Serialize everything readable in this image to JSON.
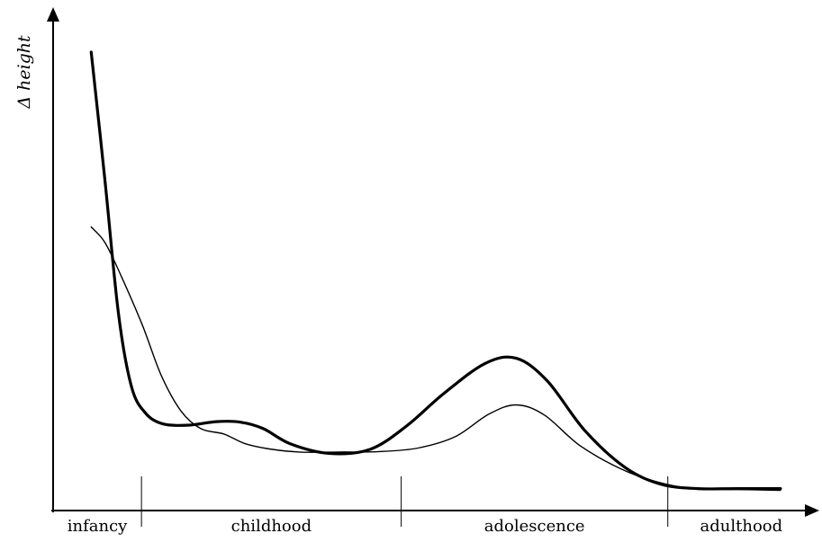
{
  "chart_data": {
    "type": "line",
    "title": "",
    "xlabel": "",
    "ylabel": "Δ height",
    "grid": false,
    "legend": "none",
    "xlim": [
      0,
      100
    ],
    "ylim": [
      0,
      100
    ],
    "stages": [
      {
        "label": "infancy",
        "start": 0,
        "end": 11.6
      },
      {
        "label": "childhood",
        "start": 11.6,
        "end": 45.7
      },
      {
        "label": "adolescence",
        "start": 45.7,
        "end": 80.7
      },
      {
        "label": "adulthood",
        "start": 80.7,
        "end": 100
      }
    ],
    "series": [
      {
        "style": "thick",
        "points": [
          [
            5,
            100
          ],
          [
            6.8,
            71
          ],
          [
            8.6,
            40.3
          ],
          [
            10.3,
            24
          ],
          [
            12.1,
            18.1
          ],
          [
            14.4,
            15.6
          ],
          [
            17.8,
            15.3
          ],
          [
            21.4,
            16.1
          ],
          [
            24.5,
            16
          ],
          [
            27.6,
            14.5
          ],
          [
            31.1,
            11.1
          ],
          [
            36.2,
            8.9
          ],
          [
            41.6,
            9.8
          ],
          [
            46.4,
            15.1
          ],
          [
            51.3,
            22.5
          ],
          [
            56.7,
            29.3
          ],
          [
            60.8,
            30.5
          ],
          [
            64.9,
            25.3
          ],
          [
            69.8,
            14.1
          ],
          [
            75.1,
            5.7
          ],
          [
            79.8,
            1.9
          ],
          [
            84.6,
            0.9
          ],
          [
            89.7,
            0.9
          ],
          [
            95.5,
            0.9
          ]
        ]
      },
      {
        "style": "thin",
        "points": [
          [
            5,
            60.3
          ],
          [
            6.8,
            56.8
          ],
          [
            8.9,
            49.3
          ],
          [
            11.7,
            38.1
          ],
          [
            14.2,
            26.6
          ],
          [
            16.8,
            18.5
          ],
          [
            19.4,
            14.5
          ],
          [
            22.4,
            13.3
          ],
          [
            25.2,
            11.1
          ],
          [
            28.4,
            9.9
          ],
          [
            32.3,
            9.2
          ],
          [
            37.6,
            9.2
          ],
          [
            42.8,
            9.3
          ],
          [
            47.9,
            10.1
          ],
          [
            52.8,
            12.7
          ],
          [
            57.2,
            17.8
          ],
          [
            60.8,
            19.9
          ],
          [
            64.5,
            17.6
          ],
          [
            69.3,
            10.5
          ],
          [
            75.3,
            4.8
          ],
          [
            80.5,
            1.9
          ],
          [
            84.6,
            0.9
          ],
          [
            89.7,
            0.7
          ],
          [
            95.5,
            0.5
          ]
        ]
      }
    ]
  }
}
